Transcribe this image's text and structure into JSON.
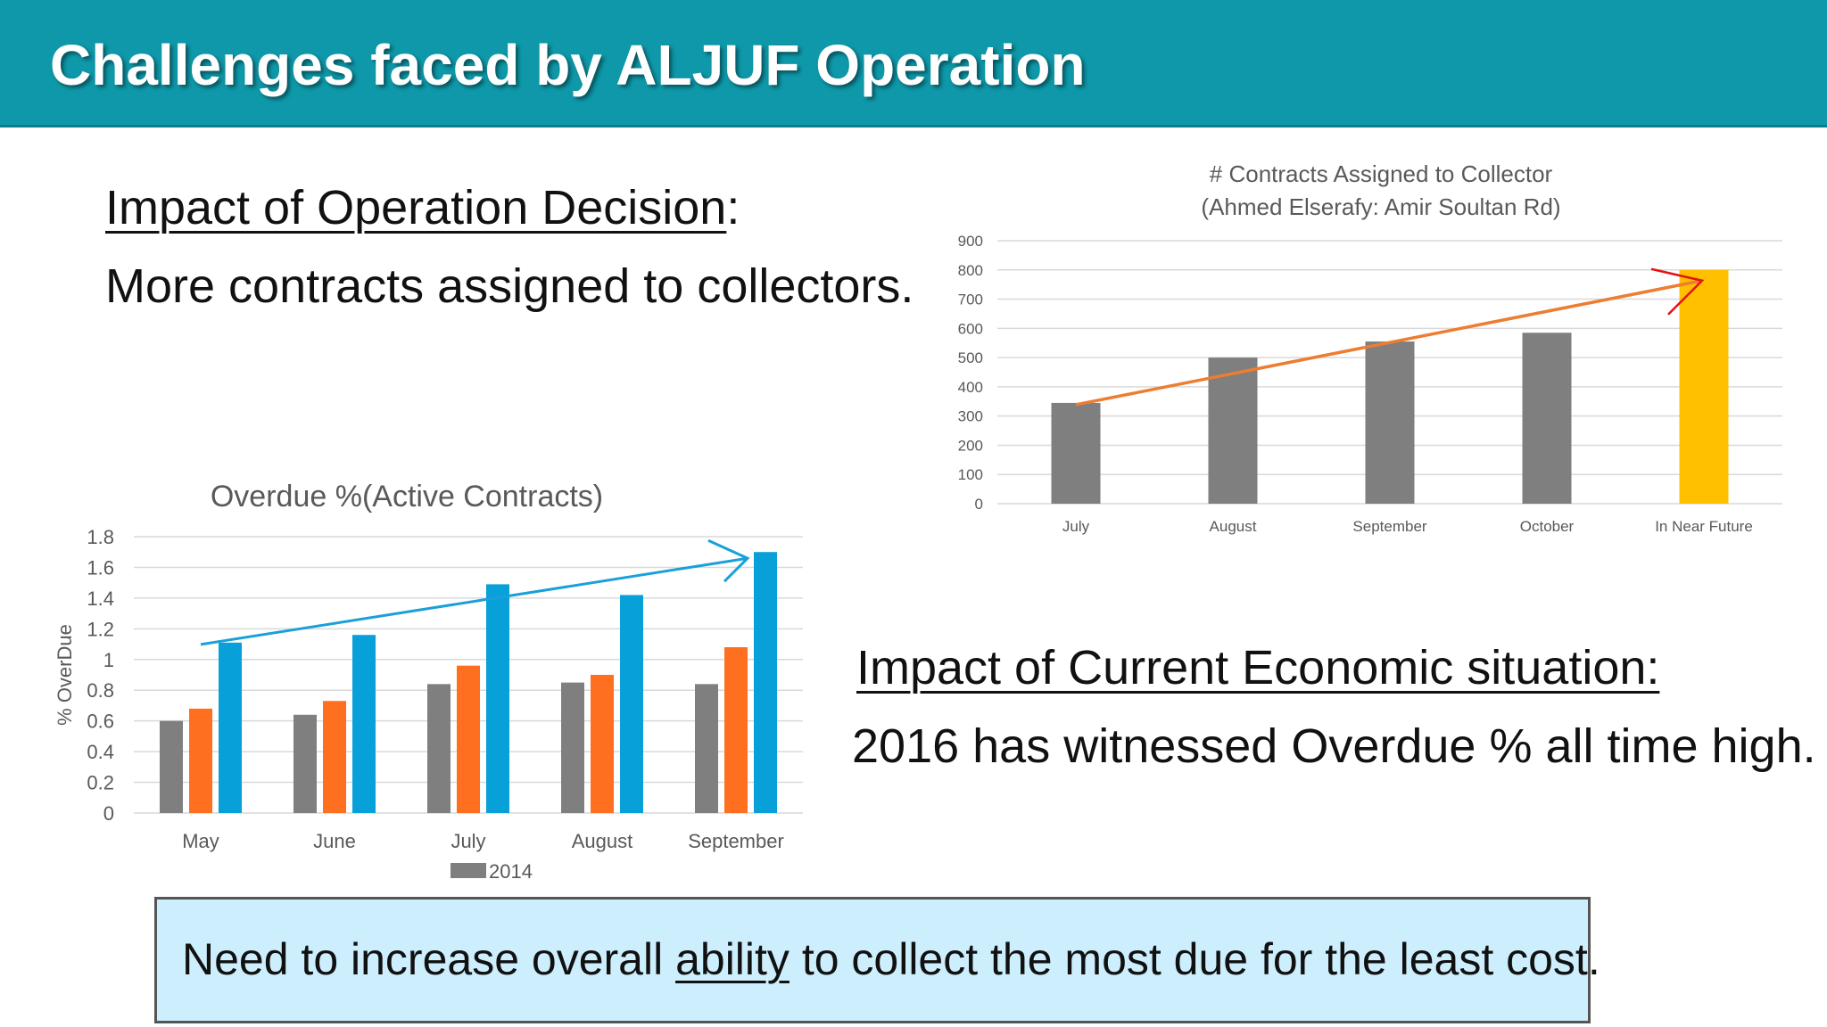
{
  "slide": {
    "title": "Challenges faced by ALJUF Operation",
    "heading_1": "Impact of Operation Decision",
    "line_1": "More contracts assigned to collectors.",
    "heading_2": "Impact of Current Economic situation:",
    "line_2": "2016 has witnessed Overdue % all time high.",
    "callout_before": "Need to increase overall ",
    "callout_underlined": "ability",
    "callout_after": " to collect the most due for the least cost."
  },
  "colors": {
    "title_bar": "#0e98a9",
    "bar_gray": "#7f7f7f",
    "bar_orange": "#ff6f20",
    "bar_blue": "#08a0d8",
    "bar_yellow": "#ffc000",
    "trend_orange": "#ed7d31",
    "trend_blue": "#1aa0d8",
    "arrow_red": "#e81010",
    "callout_bg": "#cdeefc"
  },
  "chart_data": [
    {
      "type": "bar",
      "title": "# Contracts Assigned to Collector",
      "subtitle": "(Ahmed Elserafy: Amir Soultan Rd)",
      "categories": [
        "July",
        "August",
        "September",
        "October",
        "In Near Future"
      ],
      "values": [
        345,
        500,
        555,
        585,
        800
      ],
      "highlight_index": 4,
      "ylim": [
        0,
        900
      ],
      "yticks": [
        0,
        100,
        200,
        300,
        400,
        500,
        600,
        700,
        800,
        900
      ],
      "grid": true,
      "annotations": [
        "upward trend arrow"
      ]
    },
    {
      "type": "bar",
      "title": "Overdue %(Active Contracts)",
      "ylabel": "% OverDue",
      "categories": [
        "May",
        "June",
        "July",
        "August",
        "September"
      ],
      "series": [
        {
          "name": "2014",
          "values": [
            0.6,
            0.64,
            0.84,
            0.85,
            0.84
          ]
        },
        {
          "values": [
            0.68,
            0.73,
            0.96,
            0.9,
            1.08
          ]
        },
        {
          "values": [
            1.11,
            1.16,
            1.49,
            1.42,
            1.7
          ]
        }
      ],
      "ylim": [
        0,
        1.8
      ],
      "yticks": [
        "0",
        "0.2",
        "0.4",
        "0.6",
        "0.8",
        "1",
        "1.2",
        "1.4",
        "1.6",
        "1.8"
      ],
      "grid": true,
      "legend_position": "bottom",
      "annotations": [
        "upward trend arrow"
      ]
    }
  ]
}
